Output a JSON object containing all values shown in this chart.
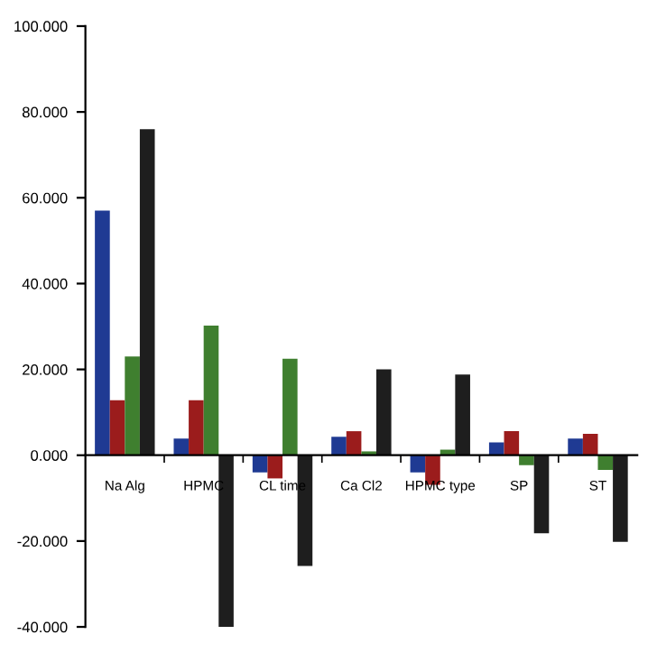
{
  "chart_data": {
    "type": "bar",
    "categories": [
      "Na Alg",
      "HPMC",
      "CL time",
      "Ca Cl2",
      "HPMC type",
      "SP",
      "ST"
    ],
    "series": [
      {
        "color": "#1f3a93",
        "values": [
          57,
          3.9,
          -4,
          4.3,
          -4,
          3,
          3.9
        ]
      },
      {
        "color": "#9b1c1c",
        "values": [
          12.8,
          12.8,
          -5.4,
          5.6,
          -6.9,
          5.6,
          5
        ]
      },
      {
        "color": "#3f7f2f",
        "values": [
          23,
          30.2,
          22.5,
          0.9,
          1.3,
          -2.3,
          -3.4
        ]
      },
      {
        "color": "#1e1e1e",
        "values": [
          76,
          -40,
          -25.8,
          20,
          18.8,
          -18.2,
          -20.2
        ]
      }
    ],
    "ylim": [
      -40,
      100
    ],
    "yticks": [
      {
        "value": -40,
        "label": "-40.000"
      },
      {
        "value": -20,
        "label": "-20.000"
      },
      {
        "value": 0,
        "label": "0.000"
      },
      {
        "value": 20,
        "label": "20.000"
      },
      {
        "value": 40,
        "label": "40.000"
      },
      {
        "value": 60,
        "label": "60.000"
      },
      {
        "value": 80,
        "label": "80.000"
      },
      {
        "value": 100,
        "label": "100.000"
      }
    ],
    "grid": false,
    "legend": false
  }
}
